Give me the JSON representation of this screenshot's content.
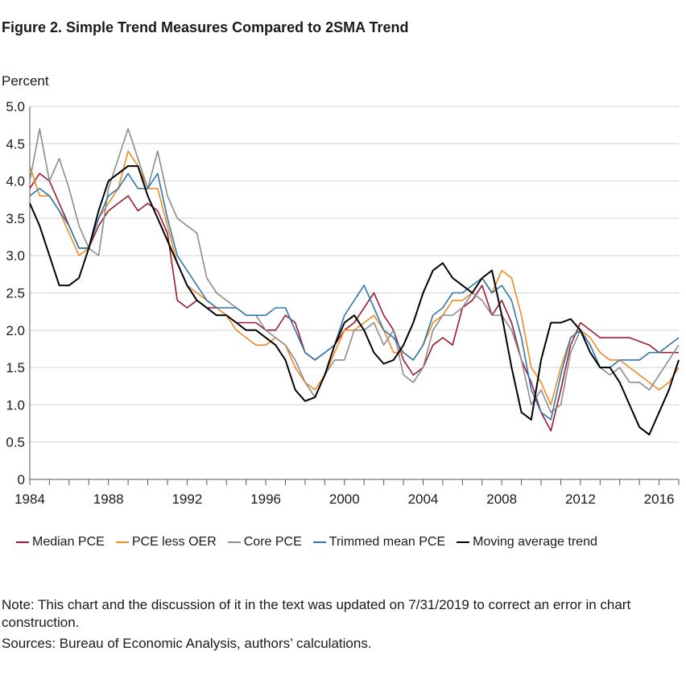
{
  "title": "Figure 2. Simple Trend Measures Compared to 2SMA Trend",
  "note": "Note: This chart and the discussion of it in the text was updated on 7/31/2019 to correct an error in chart construction.",
  "sources": "Sources: Bureau of Economic Analysis, authors’ calculations.",
  "chart_data": {
    "type": "line",
    "title": "Figure 2. Simple Trend Measures Compared to 2SMA Trend",
    "ylabel": "Percent",
    "xlabel": "",
    "ylim": [
      0,
      5
    ],
    "xlim": [
      1984,
      2017
    ],
    "yticks": [
      "0",
      "0.5",
      "1.0",
      "1.5",
      "2.0",
      "2.5",
      "3.0",
      "3.5",
      "4.0",
      "4.5",
      "5.0"
    ],
    "xticks": [
      "1984",
      "1988",
      "1992",
      "1996",
      "2000",
      "2004",
      "2008",
      "2012",
      "2016"
    ],
    "grid": "horizontal",
    "legend": "bottom",
    "series": [
      {
        "name": "Median PCE",
        "color": "#9b1b30",
        "x": [
          1984,
          1984.5,
          1985,
          1985.5,
          1986,
          1986.5,
          1987,
          1987.5,
          1988,
          1988.5,
          1989,
          1989.5,
          1990,
          1990.5,
          1991,
          1991.5,
          1992,
          1992.5,
          1993,
          1993.5,
          1994,
          1994.5,
          1995,
          1995.5,
          1996,
          1996.5,
          1997,
          1997.5,
          1998,
          1998.5,
          1999,
          1999.5,
          2000,
          2000.5,
          2001,
          2001.5,
          2002,
          2002.5,
          2003,
          2003.5,
          2004,
          2004.5,
          2005,
          2005.5,
          2006,
          2006.5,
          2007,
          2007.5,
          2008,
          2008.5,
          2009,
          2009.5,
          2010,
          2010.5,
          2011,
          2011.5,
          2012,
          2012.5,
          2013,
          2013.5,
          2014,
          2014.5,
          2015,
          2015.5,
          2016,
          2016.5,
          2017
        ],
        "y": [
          3.9,
          4.1,
          4.0,
          3.7,
          3.4,
          3.1,
          3.1,
          3.4,
          3.6,
          3.7,
          3.8,
          3.6,
          3.7,
          3.6,
          3.3,
          2.4,
          2.3,
          2.4,
          2.3,
          2.3,
          2.2,
          2.1,
          2.1,
          2.1,
          2.0,
          2.0,
          2.2,
          2.1,
          1.7,
          1.6,
          1.7,
          1.8,
          2.0,
          2.1,
          2.3,
          2.5,
          2.2,
          2.0,
          1.6,
          1.4,
          1.5,
          1.8,
          1.9,
          1.8,
          2.3,
          2.4,
          2.6,
          2.2,
          2.4,
          2.1,
          1.6,
          1.3,
          0.9,
          0.65,
          1.2,
          1.8,
          2.1,
          2.0,
          1.9,
          1.9,
          1.9,
          1.9,
          1.85,
          1.8,
          1.7,
          1.7,
          1.7
        ]
      },
      {
        "name": "PCE less OER",
        "color": "#ef8a24",
        "x": [
          1984,
          1984.5,
          1985,
          1985.5,
          1986,
          1986.5,
          1987,
          1987.5,
          1988,
          1988.5,
          1989,
          1989.5,
          1990,
          1990.5,
          1991,
          1991.5,
          1992,
          1992.5,
          1993,
          1993.5,
          1994,
          1994.5,
          1995,
          1995.5,
          1996,
          1996.5,
          1997,
          1997.5,
          1998,
          1998.5,
          1999,
          1999.5,
          2000,
          2000.5,
          2001,
          2001.5,
          2002,
          2002.5,
          2003,
          2003.5,
          2004,
          2004.5,
          2005,
          2005.5,
          2006,
          2006.5,
          2007,
          2007.5,
          2008,
          2008.5,
          2009,
          2009.5,
          2010,
          2010.5,
          2011,
          2011.5,
          2012,
          2012.5,
          2013,
          2013.5,
          2014,
          2014.5,
          2015,
          2015.5,
          2016,
          2016.5,
          2017
        ],
        "y": [
          4.2,
          3.8,
          3.8,
          3.6,
          3.3,
          3.0,
          3.1,
          3.5,
          3.7,
          3.9,
          4.4,
          4.2,
          3.9,
          3.9,
          3.4,
          2.9,
          2.6,
          2.5,
          2.4,
          2.3,
          2.2,
          2.0,
          1.9,
          1.8,
          1.8,
          1.9,
          1.8,
          1.5,
          1.3,
          1.2,
          1.4,
          1.7,
          2.0,
          2.0,
          2.1,
          2.2,
          2.0,
          1.7,
          1.7,
          1.6,
          1.8,
          2.1,
          2.2,
          2.4,
          2.4,
          2.5,
          2.7,
          2.5,
          2.8,
          2.7,
          2.2,
          1.5,
          1.3,
          1.0,
          1.5,
          1.9,
          2.0,
          1.9,
          1.7,
          1.6,
          1.6,
          1.5,
          1.4,
          1.3,
          1.2,
          1.3,
          1.5
        ]
      },
      {
        "name": "Core PCE",
        "color": "#8c8c8c",
        "x": [
          1984,
          1984.5,
          1985,
          1985.5,
          1986,
          1986.5,
          1987,
          1987.5,
          1988,
          1988.5,
          1989,
          1989.5,
          1990,
          1990.5,
          1991,
          1991.5,
          1992,
          1992.5,
          1993,
          1993.5,
          1994,
          1994.5,
          1995,
          1995.5,
          1996,
          1996.5,
          1997,
          1997.5,
          1998,
          1998.5,
          1999,
          1999.5,
          2000,
          2000.5,
          2001,
          2001.5,
          2002,
          2002.5,
          2003,
          2003.5,
          2004,
          2004.5,
          2005,
          2005.5,
          2006,
          2006.5,
          2007,
          2007.5,
          2008,
          2008.5,
          2009,
          2009.5,
          2010,
          2010.5,
          2011,
          2011.5,
          2012,
          2012.5,
          2013,
          2013.5,
          2014,
          2014.5,
          2015,
          2015.5,
          2016,
          2016.5,
          2017
        ],
        "y": [
          4.0,
          4.7,
          4.0,
          4.3,
          3.9,
          3.4,
          3.1,
          3.0,
          3.9,
          4.3,
          4.7,
          4.3,
          3.9,
          4.4,
          3.8,
          3.5,
          3.4,
          3.3,
          2.7,
          2.5,
          2.4,
          2.3,
          2.2,
          2.2,
          2.0,
          1.9,
          1.8,
          1.6,
          1.3,
          1.1,
          1.4,
          1.6,
          1.6,
          2.0,
          2.0,
          2.1,
          1.8,
          2.0,
          1.4,
          1.3,
          1.5,
          2.0,
          2.2,
          2.2,
          2.3,
          2.5,
          2.4,
          2.2,
          2.2,
          2.0,
          1.6,
          1.0,
          1.2,
          0.9,
          1.0,
          1.7,
          2.0,
          1.8,
          1.5,
          1.4,
          1.5,
          1.3,
          1.3,
          1.2,
          1.4,
          1.6,
          1.8
        ]
      },
      {
        "name": "Trimmed mean PCE",
        "color": "#2e78b0",
        "x": [
          1984,
          1984.5,
          1985,
          1985.5,
          1986,
          1986.5,
          1987,
          1987.5,
          1988,
          1988.5,
          1989,
          1989.5,
          1990,
          1990.5,
          1991,
          1991.5,
          1992,
          1992.5,
          1993,
          1993.5,
          1994,
          1994.5,
          1995,
          1995.5,
          1996,
          1996.5,
          1997,
          1997.5,
          1998,
          1998.5,
          1999,
          1999.5,
          2000,
          2000.5,
          2001,
          2001.5,
          2002,
          2002.5,
          2003,
          2003.5,
          2004,
          2004.5,
          2005,
          2005.5,
          2006,
          2006.5,
          2007,
          2007.5,
          2008,
          2008.5,
          2009,
          2009.5,
          2010,
          2010.5,
          2011,
          2011.5,
          2012,
          2012.5,
          2013,
          2013.5,
          2014,
          2014.5,
          2015,
          2015.5,
          2016,
          2016.5,
          2017
        ],
        "y": [
          3.8,
          3.9,
          3.8,
          3.6,
          3.4,
          3.1,
          3.1,
          3.5,
          3.8,
          3.9,
          4.1,
          3.9,
          3.9,
          4.1,
          3.5,
          3.0,
          2.8,
          2.6,
          2.4,
          2.3,
          2.3,
          2.3,
          2.2,
          2.2,
          2.2,
          2.3,
          2.3,
          2.0,
          1.7,
          1.6,
          1.7,
          1.8,
          2.2,
          2.4,
          2.6,
          2.3,
          2.0,
          1.9,
          1.7,
          1.6,
          1.8,
          2.2,
          2.3,
          2.5,
          2.5,
          2.6,
          2.7,
          2.5,
          2.6,
          2.4,
          1.9,
          1.2,
          0.9,
          0.8,
          1.4,
          1.9,
          2.0,
          1.8,
          1.5,
          1.5,
          1.6,
          1.6,
          1.6,
          1.7,
          1.7,
          1.8,
          1.9
        ]
      },
      {
        "name": "Moving average trend",
        "color": "#000000",
        "x": [
          1984,
          1984.5,
          1985,
          1985.5,
          1986,
          1986.5,
          1987,
          1987.5,
          1988,
          1988.5,
          1989,
          1989.5,
          1990,
          1990.5,
          1991,
          1991.5,
          1992,
          1992.5,
          1993,
          1993.5,
          1994,
          1994.5,
          1995,
          1995.5,
          1996,
          1996.5,
          1997,
          1997.5,
          1998,
          1998.5,
          1999,
          1999.5,
          2000,
          2000.5,
          2001,
          2001.5,
          2002,
          2002.5,
          2003,
          2003.5,
          2004,
          2004.5,
          2005,
          2005.5,
          2006,
          2006.5,
          2007,
          2007.5,
          2008,
          2008.5,
          2009,
          2009.5,
          2010,
          2010.5,
          2011,
          2011.5,
          2012,
          2012.5,
          2013,
          2013.5,
          2014,
          2014.5,
          2015,
          2015.5,
          2016,
          2016.5,
          2017
        ],
        "y": [
          3.7,
          3.4,
          3.0,
          2.6,
          2.6,
          2.7,
          3.1,
          3.6,
          4.0,
          4.1,
          4.2,
          4.2,
          3.8,
          3.5,
          3.2,
          2.9,
          2.6,
          2.4,
          2.3,
          2.2,
          2.2,
          2.1,
          2.0,
          2.0,
          1.9,
          1.8,
          1.6,
          1.2,
          1.05,
          1.1,
          1.4,
          1.8,
          2.1,
          2.2,
          2.0,
          1.7,
          1.55,
          1.6,
          1.8,
          2.1,
          2.5,
          2.8,
          2.9,
          2.7,
          2.6,
          2.5,
          2.7,
          2.8,
          2.2,
          1.5,
          0.9,
          0.8,
          1.6,
          2.1,
          2.1,
          2.15,
          2.0,
          1.7,
          1.5,
          1.5,
          1.3,
          1.0,
          0.7,
          0.6,
          0.9,
          1.2,
          1.6
        ]
      }
    ]
  }
}
